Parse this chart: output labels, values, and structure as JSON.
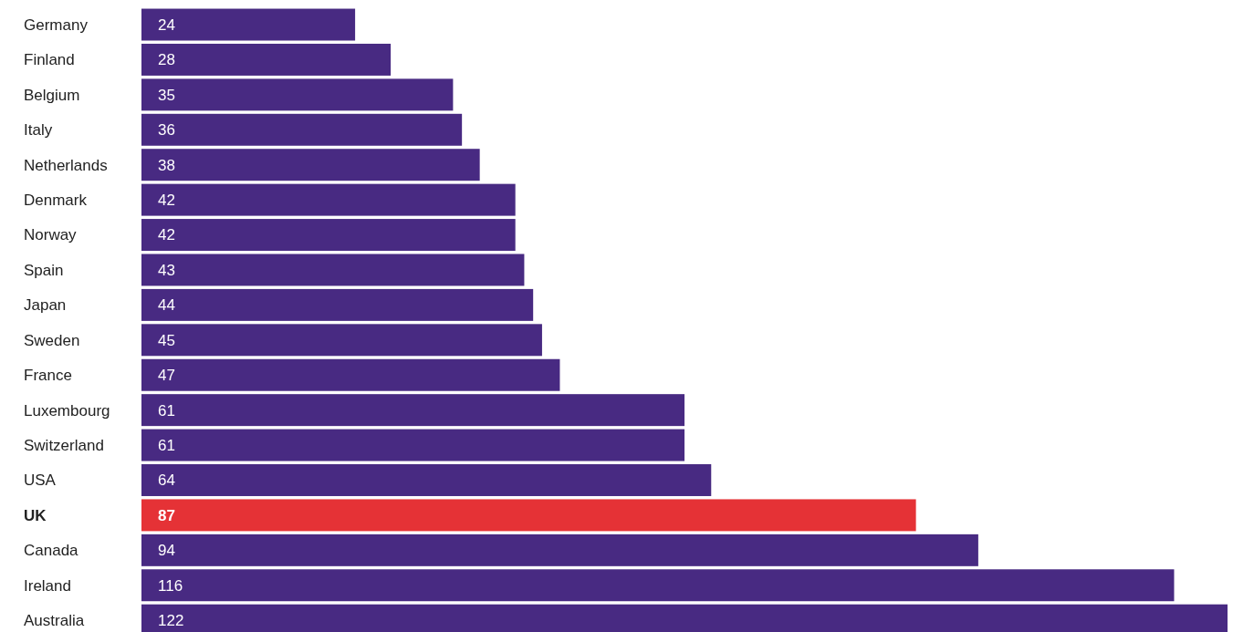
{
  "chart_data": {
    "type": "bar",
    "orientation": "horizontal",
    "data_labels": true,
    "categories": [
      "Germany",
      "Finland",
      "Belgium",
      "Italy",
      "Netherlands",
      "Denmark",
      "Norway",
      "Spain",
      "Japan",
      "Sweden",
      "France",
      "Luxembourg",
      "Switzerland",
      "USA",
      "UK",
      "Canada",
      "Ireland",
      "Australia"
    ],
    "values": [
      24,
      28,
      35,
      36,
      38,
      42,
      42,
      43,
      44,
      45,
      47,
      61,
      61,
      64,
      87,
      94,
      116,
      122
    ],
    "colors": [
      "#482a82",
      "#482a82",
      "#482a82",
      "#482a82",
      "#482a82",
      "#482a82",
      "#482a82",
      "#482a82",
      "#482a82",
      "#482a82",
      "#482a82",
      "#482a82",
      "#482a82",
      "#482a82",
      "#e53236",
      "#482a82",
      "#482a82",
      "#482a82"
    ]
  }
}
